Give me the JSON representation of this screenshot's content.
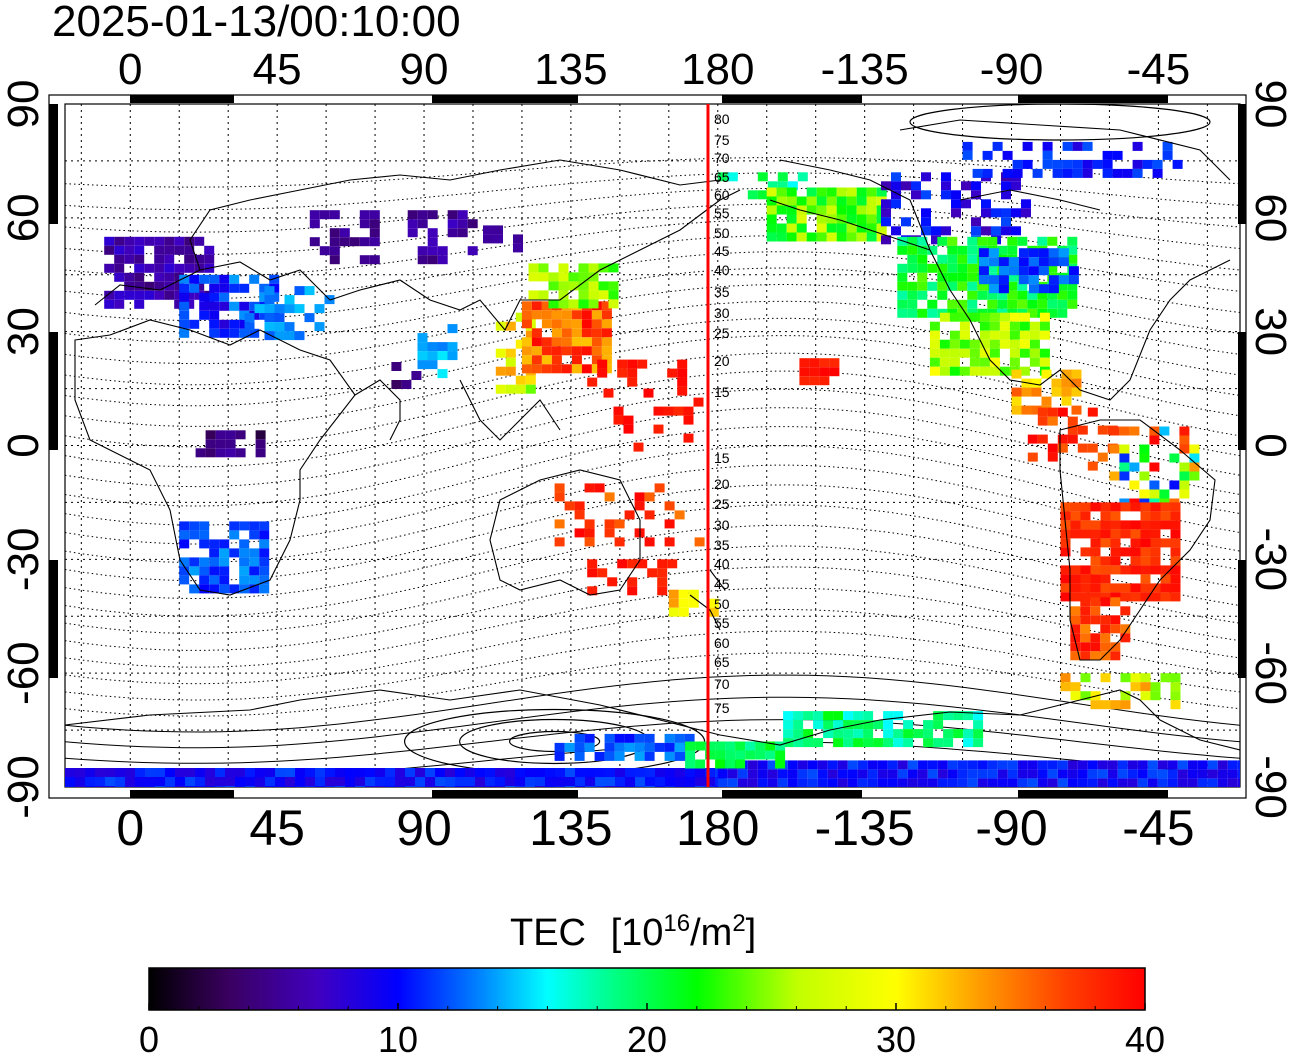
{
  "title": "2025-01-13/00:10:00",
  "lon_ticks": [
    "0",
    "45",
    "90",
    "135",
    "180",
    "-135",
    "-90",
    "-45"
  ],
  "lat_ticks": [
    "90",
    "60",
    "30",
    "0",
    "-30",
    "-60",
    "-90"
  ],
  "magnetic_lat_labels_north": [
    "80",
    "75",
    "70",
    "65",
    "60",
    "55",
    "50",
    "45",
    "40",
    "35",
    "30",
    "25",
    "20",
    "15"
  ],
  "magnetic_lat_labels_south": [
    "15",
    "20",
    "25",
    "30",
    "35",
    "40",
    "45",
    "50",
    "55",
    "60",
    "65",
    "70",
    "75"
  ],
  "colorbar": {
    "title": "TEC",
    "unit_base": "[10",
    "unit_exp": "16",
    "unit_mid": "/m",
    "unit_exp2": "2",
    "unit_close": "]",
    "min": 0,
    "max": 40,
    "tick_labels": [
      "0",
      "10",
      "20",
      "30",
      "40"
    ]
  },
  "colors": {
    "meridian_line": "#ff0000",
    "colormap": [
      "#000000",
      "#3a0060",
      "#4000c0",
      "#0000ff",
      "#0080ff",
      "#00ffff",
      "#00ff80",
      "#00ff00",
      "#c0ff00",
      "#ffff00",
      "#ffa000",
      "#ff4000",
      "#ff0000"
    ]
  },
  "map": {
    "projection": "equirectangular",
    "lon_range": [
      -20,
      340
    ],
    "lat_range": [
      -90,
      90
    ],
    "highlighted_meridian_lon": 177
  }
}
